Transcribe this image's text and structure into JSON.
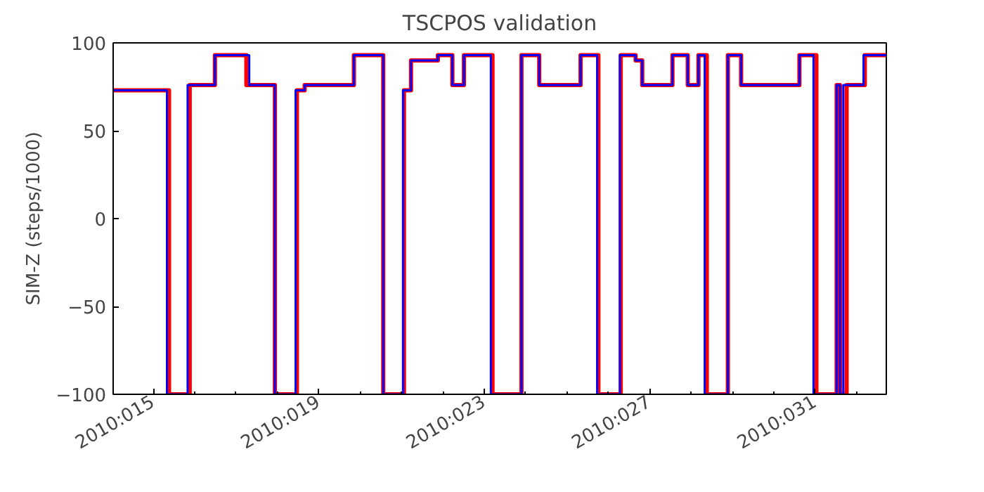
{
  "chart_data": {
    "type": "step",
    "title": "TSCPOS validation",
    "ylabel": "SIM-Z (steps/1000)",
    "xlim": [
      "2010-01-14T00:43",
      "2010-02-01T17:17"
    ],
    "ylim": [
      -100,
      100
    ],
    "yticks": [
      -100,
      -50,
      0,
      50,
      100
    ],
    "xticks": [
      {
        "value": "2010-01-15",
        "label": "2010:015"
      },
      {
        "value": "2010-01-16",
        "label": null
      },
      {
        "value": "2010-01-17",
        "label": null
      },
      {
        "value": "2010-01-18",
        "label": null
      },
      {
        "value": "2010-01-19",
        "label": "2010:019"
      },
      {
        "value": "2010-01-20",
        "label": null
      },
      {
        "value": "2010-01-21",
        "label": null
      },
      {
        "value": "2010-01-22",
        "label": null
      },
      {
        "value": "2010-01-23",
        "label": "2010:023"
      },
      {
        "value": "2010-01-24",
        "label": null
      },
      {
        "value": "2010-01-25",
        "label": null
      },
      {
        "value": "2010-01-26",
        "label": null
      },
      {
        "value": "2010-01-27",
        "label": "2010:027"
      },
      {
        "value": "2010-01-28",
        "label": null
      },
      {
        "value": "2010-01-29",
        "label": null
      },
      {
        "value": "2010-01-30",
        "label": null
      },
      {
        "value": "2010-01-31",
        "label": "2010:031"
      },
      {
        "value": "2010-02-01",
        "label": null
      }
    ],
    "grid": false,
    "line_style": "solid",
    "marker": "none",
    "series": [
      {
        "color": "#ff0000",
        "x": [
          "2010-01-14T00:43",
          "2010-01-15T09:07",
          "2010-01-15T21:07",
          "2010-01-16T11:46",
          "2010-01-17T06:00",
          "2010-01-17T22:34",
          "2010-01-18T11:17",
          "2010-01-18T15:50",
          "2010-01-19T20:24",
          "2010-01-20T13:26",
          "2010-01-21T01:26",
          "2010-01-21T05:31",
          "2010-01-21T21:07",
          "2010-01-22T05:31",
          "2010-01-22T12:14",
          "2010-01-23T04:48",
          "2010-01-23T21:36",
          "2010-01-24T07:55",
          "2010-01-25T07:55",
          "2010-01-25T18:14",
          "2010-01-26T07:12",
          "2010-01-26T15:50",
          "2010-01-26T19:41",
          "2010-01-27T13:12",
          "2010-01-27T22:05",
          "2010-01-28T04:19",
          "2010-01-28T09:07",
          "2010-01-28T21:22",
          "2010-01-29T05:02",
          "2010-01-30T14:53",
          "2010-01-31T00:43",
          "2010-01-31T12:29",
          "2010-01-31T14:24",
          "2010-01-31T18:14",
          "2010-02-01T04:48",
          "2010-02-01T17:17"
        ],
        "values": [
          73,
          -100,
          76,
          93,
          76,
          -100,
          73,
          76,
          93,
          -100,
          73,
          90,
          93,
          76,
          93,
          -100,
          93,
          76,
          93,
          -100,
          93,
          90,
          76,
          93,
          76,
          93,
          -100,
          93,
          76,
          93,
          -100,
          76,
          -100,
          76,
          93,
          93
        ]
      },
      {
        "color": "#0000ff",
        "x": [
          "2010-01-14T00:43",
          "2010-01-15T07:55",
          "2010-01-15T19:55",
          "2010-01-16T11:46",
          "2010-01-17T07:41",
          "2010-01-17T22:34",
          "2010-01-18T10:34",
          "2010-01-18T15:50",
          "2010-01-19T20:24",
          "2010-01-20T13:26",
          "2010-01-21T00:58",
          "2010-01-21T05:31",
          "2010-01-21T21:07",
          "2010-01-22T05:31",
          "2010-01-22T12:14",
          "2010-01-23T03:50",
          "2010-01-23T21:36",
          "2010-01-24T07:55",
          "2010-01-25T07:55",
          "2010-01-25T17:31",
          "2010-01-26T06:43",
          "2010-01-26T15:50",
          "2010-01-26T19:41",
          "2010-01-27T13:12",
          "2010-01-27T22:05",
          "2010-01-28T04:19",
          "2010-01-28T07:55",
          "2010-01-28T21:22",
          "2010-01-29T05:02",
          "2010-01-30T14:53",
          "2010-01-30T23:02",
          "2010-01-31T12:29",
          "2010-01-31T14:24",
          "2010-01-31T16:19",
          "2010-02-01T04:05",
          "2010-02-01T17:17"
        ],
        "values": [
          73,
          -100,
          76,
          93,
          76,
          -100,
          73,
          76,
          93,
          -100,
          73,
          90,
          93,
          76,
          93,
          -100,
          93,
          76,
          93,
          -100,
          93,
          90,
          76,
          93,
          76,
          93,
          -100,
          93,
          76,
          93,
          -100,
          76,
          -100,
          76,
          93,
          93
        ]
      }
    ]
  }
}
